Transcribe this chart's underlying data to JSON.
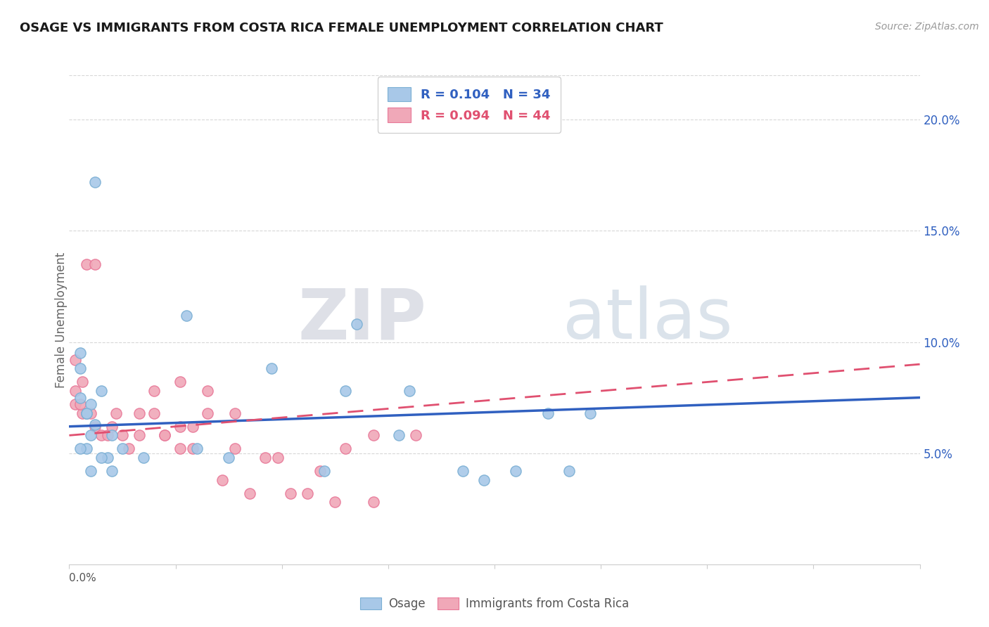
{
  "title": "OSAGE VS IMMIGRANTS FROM COSTA RICA FEMALE UNEMPLOYMENT CORRELATION CHART",
  "source": "Source: ZipAtlas.com",
  "ylabel": "Female Unemployment",
  "xlim": [
    0.0,
    0.4
  ],
  "ylim": [
    0.0,
    0.22
  ],
  "xticks_minor": [
    0.0,
    0.05,
    0.1,
    0.15,
    0.2,
    0.25,
    0.3,
    0.35,
    0.4
  ],
  "yticks_right": [
    0.05,
    0.1,
    0.15,
    0.2
  ],
  "yticklabels_right": [
    "5.0%",
    "10.0%",
    "15.0%",
    "20.0%"
  ],
  "legend_blue_label": "R = 0.104   N = 34",
  "legend_pink_label": "R = 0.094   N = 44",
  "legend_bottom_blue": "Osage",
  "legend_bottom_pink": "Immigrants from Costa Rica",
  "blue_color": "#a8c8e8",
  "pink_color": "#f0a8b8",
  "blue_scatter_edge": "#7bafd4",
  "pink_scatter_edge": "#e87898",
  "blue_line_color": "#3060c0",
  "pink_line_color": "#e05070",
  "watermark_zip_color": "#d8dde8",
  "watermark_atlas_color": "#c8d8e8",
  "blue_scatter_x": [
    0.012,
    0.005,
    0.005,
    0.005,
    0.008,
    0.01,
    0.008,
    0.012,
    0.02,
    0.025,
    0.018,
    0.015,
    0.01,
    0.02,
    0.015,
    0.008,
    0.005,
    0.01,
    0.055,
    0.095,
    0.13,
    0.16,
    0.155,
    0.185,
    0.195,
    0.21,
    0.225,
    0.135,
    0.245,
    0.235,
    0.12,
    0.075,
    0.06,
    0.035
  ],
  "blue_scatter_y": [
    0.172,
    0.095,
    0.088,
    0.075,
    0.068,
    0.072,
    0.068,
    0.063,
    0.058,
    0.052,
    0.048,
    0.048,
    0.042,
    0.042,
    0.078,
    0.052,
    0.052,
    0.058,
    0.112,
    0.088,
    0.078,
    0.078,
    0.058,
    0.042,
    0.038,
    0.042,
    0.068,
    0.108,
    0.068,
    0.042,
    0.042,
    0.048,
    0.052,
    0.048
  ],
  "pink_scatter_x": [
    0.003,
    0.006,
    0.008,
    0.012,
    0.003,
    0.006,
    0.003,
    0.005,
    0.008,
    0.01,
    0.012,
    0.015,
    0.018,
    0.02,
    0.022,
    0.025,
    0.028,
    0.033,
    0.04,
    0.045,
    0.052,
    0.058,
    0.065,
    0.078,
    0.092,
    0.104,
    0.118,
    0.13,
    0.143,
    0.052,
    0.065,
    0.078,
    0.098,
    0.112,
    0.125,
    0.143,
    0.163,
    0.033,
    0.045,
    0.058,
    0.072,
    0.085,
    0.04,
    0.052
  ],
  "pink_scatter_y": [
    0.072,
    0.068,
    0.135,
    0.135,
    0.092,
    0.082,
    0.078,
    0.072,
    0.068,
    0.068,
    0.062,
    0.058,
    0.058,
    0.062,
    0.068,
    0.058,
    0.052,
    0.058,
    0.078,
    0.058,
    0.052,
    0.062,
    0.068,
    0.068,
    0.048,
    0.032,
    0.042,
    0.052,
    0.058,
    0.082,
    0.078,
    0.052,
    0.048,
    0.032,
    0.028,
    0.028,
    0.058,
    0.068,
    0.058,
    0.052,
    0.038,
    0.032,
    0.068,
    0.062
  ],
  "blue_line_x": [
    0.0,
    0.4
  ],
  "blue_line_y": [
    0.062,
    0.075
  ],
  "pink_line_x": [
    0.0,
    0.4
  ],
  "pink_line_y": [
    0.058,
    0.09
  ],
  "background_color": "#ffffff",
  "grid_color": "#d8d8d8",
  "spine_color": "#cccccc"
}
